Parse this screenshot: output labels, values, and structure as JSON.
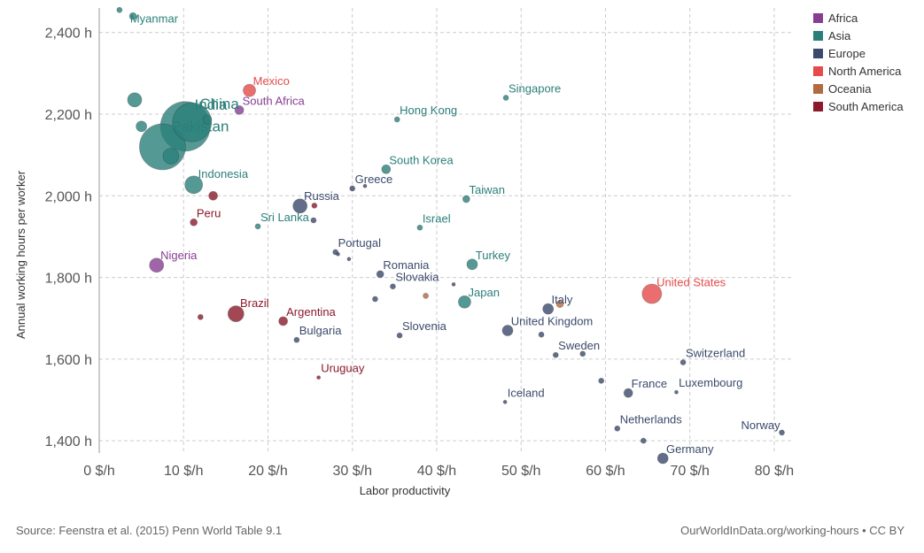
{
  "chart_data": {
    "type": "scatter",
    "xlabel": "Labor productivity",
    "ylabel": "Annual working hours per worker",
    "xlim": [
      0,
      82
    ],
    "ylim": [
      1370,
      2460
    ],
    "x_ticks": [
      0,
      10,
      20,
      30,
      40,
      50,
      60,
      70,
      80
    ],
    "x_tick_labels": [
      "0 $/h",
      "10 $/h",
      "20 $/h",
      "30 $/h",
      "40 $/h",
      "50 $/h",
      "60 $/h",
      "70 $/h",
      "80 $/h"
    ],
    "y_ticks": [
      1400,
      1600,
      1800,
      2000,
      2200,
      2400
    ],
    "y_tick_labels": [
      "1,400 h",
      "1,600 h",
      "1,800 h",
      "2,000 h",
      "2,200 h",
      "2,400 h"
    ],
    "grid": true,
    "legend_position": "top-right",
    "regions": [
      {
        "name": "Africa",
        "color": "#883d94"
      },
      {
        "name": "Asia",
        "color": "#2a7f7a"
      },
      {
        "name": "Europe",
        "color": "#3b4a6b"
      },
      {
        "name": "North America",
        "color": "#e64a4a"
      },
      {
        "name": "Oceania",
        "color": "#b46a3c"
      },
      {
        "name": "South America",
        "color": "#8b1a2b"
      }
    ],
    "points": [
      {
        "label": "Myanmar",
        "region": "Asia",
        "x": 2.4,
        "y": 2455,
        "r": 3
      },
      {
        "label": "",
        "region": "Asia",
        "x": 4.0,
        "y": 2440,
        "r": 4
      },
      {
        "label": "",
        "region": "Asia",
        "x": 4.2,
        "y": 2235,
        "r": 8
      },
      {
        "label": "",
        "region": "Asia",
        "x": 5.0,
        "y": 2170,
        "r": 6
      },
      {
        "label": "India",
        "region": "Asia",
        "x": 10.2,
        "y": 2170,
        "r": 28
      },
      {
        "label": "China",
        "region": "Asia",
        "x": 11.0,
        "y": 2180,
        "r": 22
      },
      {
        "label": "Pakistan",
        "region": "Asia",
        "x": 7.5,
        "y": 2120,
        "r": 26
      },
      {
        "label": "",
        "region": "Asia",
        "x": 8.5,
        "y": 2097,
        "r": 9
      },
      {
        "label": "",
        "region": "Asia",
        "x": 12.8,
        "y": 2187,
        "r": 5
      },
      {
        "label": "Mexico",
        "region": "North America",
        "x": 17.8,
        "y": 2258,
        "r": 7
      },
      {
        "label": "South Africa",
        "region": "Africa",
        "x": 16.6,
        "y": 2210,
        "r": 5
      },
      {
        "label": "Indonesia",
        "region": "Asia",
        "x": 11.2,
        "y": 2027,
        "r": 10
      },
      {
        "label": "",
        "region": "South America",
        "x": 13.5,
        "y": 2000,
        "r": 5
      },
      {
        "label": "Peru",
        "region": "South America",
        "x": 11.2,
        "y": 1935,
        "r": 4
      },
      {
        "label": "Sri Lanka",
        "region": "Asia",
        "x": 18.8,
        "y": 1925,
        "r": 3
      },
      {
        "label": "Russia",
        "region": "Europe",
        "x": 23.8,
        "y": 1975,
        "r": 8
      },
      {
        "label": "",
        "region": "South America",
        "x": 25.5,
        "y": 1976,
        "r": 3
      },
      {
        "label": "",
        "region": "Europe",
        "x": 25.4,
        "y": 1940,
        "r": 3
      },
      {
        "label": "Greece",
        "region": "Europe",
        "x": 30.0,
        "y": 2018,
        "r": 3
      },
      {
        "label": "",
        "region": "Europe",
        "x": 31.5,
        "y": 2024,
        "r": 2
      },
      {
        "label": "Nigeria",
        "region": "Africa",
        "x": 6.8,
        "y": 1830,
        "r": 8
      },
      {
        "label": "Portugal",
        "region": "Europe",
        "x": 28.0,
        "y": 1862,
        "r": 3
      },
      {
        "label": "",
        "region": "Europe",
        "x": 28.3,
        "y": 1857,
        "r": 2
      },
      {
        "label": "",
        "region": "Europe",
        "x": 29.6,
        "y": 1845,
        "r": 2
      },
      {
        "label": "Romania",
        "region": "Europe",
        "x": 33.3,
        "y": 1808,
        "r": 4
      },
      {
        "label": "Slovakia",
        "region": "Europe",
        "x": 34.8,
        "y": 1778,
        "r": 3
      },
      {
        "label": "",
        "region": "Europe",
        "x": 32.7,
        "y": 1747,
        "r": 3
      },
      {
        "label": "",
        "region": "Oceania",
        "x": 38.7,
        "y": 1755,
        "r": 3
      },
      {
        "label": "",
        "region": "Europe",
        "x": 42.0,
        "y": 1783,
        "r": 2
      },
      {
        "label": "Japan",
        "region": "Asia",
        "x": 43.3,
        "y": 1740,
        "r": 7
      },
      {
        "label": "Turkey",
        "region": "Asia",
        "x": 44.2,
        "y": 1832,
        "r": 6
      },
      {
        "label": "Taiwan",
        "region": "Asia",
        "x": 43.5,
        "y": 1992,
        "r": 4
      },
      {
        "label": "Israel",
        "region": "Asia",
        "x": 38.0,
        "y": 1922,
        "r": 3
      },
      {
        "label": "South Korea",
        "region": "Asia",
        "x": 34.0,
        "y": 2065,
        "r": 5
      },
      {
        "label": "Hong Kong",
        "region": "Asia",
        "x": 35.3,
        "y": 2187,
        "r": 3
      },
      {
        "label": "Singapore",
        "region": "Asia",
        "x": 48.2,
        "y": 2240,
        "r": 3
      },
      {
        "label": "Brazil",
        "region": "South America",
        "x": 16.2,
        "y": 1711,
        "r": 9
      },
      {
        "label": "",
        "region": "South America",
        "x": 12.0,
        "y": 1703,
        "r": 3
      },
      {
        "label": "Argentina",
        "region": "South America",
        "x": 21.8,
        "y": 1693,
        "r": 5
      },
      {
        "label": "Bulgaria",
        "region": "Europe",
        "x": 23.4,
        "y": 1647,
        "r": 3
      },
      {
        "label": "Slovenia",
        "region": "Europe",
        "x": 35.6,
        "y": 1658,
        "r": 3
      },
      {
        "label": "United Kingdom",
        "region": "Europe",
        "x": 48.4,
        "y": 1670,
        "r": 6
      },
      {
        "label": "",
        "region": "Europe",
        "x": 52.4,
        "y": 1660,
        "r": 3
      },
      {
        "label": "Italy",
        "region": "Europe",
        "x": 53.2,
        "y": 1723,
        "r": 6
      },
      {
        "label": "",
        "region": "Oceania",
        "x": 54.6,
        "y": 1735,
        "r": 4
      },
      {
        "label": "United States",
        "region": "North America",
        "x": 65.5,
        "y": 1760,
        "r": 11
      },
      {
        "label": "Sweden",
        "region": "Europe",
        "x": 54.1,
        "y": 1610,
        "r": 3
      },
      {
        "label": "",
        "region": "Europe",
        "x": 57.3,
        "y": 1613,
        "r": 3
      },
      {
        "label": "Switzerland",
        "region": "Europe",
        "x": 69.2,
        "y": 1592,
        "r": 3
      },
      {
        "label": "Uruguay",
        "region": "South America",
        "x": 26.0,
        "y": 1555,
        "r": 2
      },
      {
        "label": "Iceland",
        "region": "Europe",
        "x": 48.1,
        "y": 1495,
        "r": 2
      },
      {
        "label": "",
        "region": "Europe",
        "x": 59.5,
        "y": 1547,
        "r": 3
      },
      {
        "label": "France",
        "region": "Europe",
        "x": 62.7,
        "y": 1517,
        "r": 5
      },
      {
        "label": "Luxembourg",
        "region": "Europe",
        "x": 68.4,
        "y": 1519,
        "r": 2
      },
      {
        "label": "Netherlands",
        "region": "Europe",
        "x": 61.4,
        "y": 1430,
        "r": 3
      },
      {
        "label": "",
        "region": "Europe",
        "x": 64.5,
        "y": 1400,
        "r": 3
      },
      {
        "label": "Germany",
        "region": "Europe",
        "x": 66.8,
        "y": 1357,
        "r": 6
      },
      {
        "label": "Norway",
        "region": "Europe",
        "x": 80.9,
        "y": 1420,
        "r": 3
      }
    ]
  },
  "footer": {
    "source": "Source: Feenstra et al. (2015) Penn World Table 9.1",
    "credit": "OurWorldInData.org/working-hours • CC BY"
  }
}
